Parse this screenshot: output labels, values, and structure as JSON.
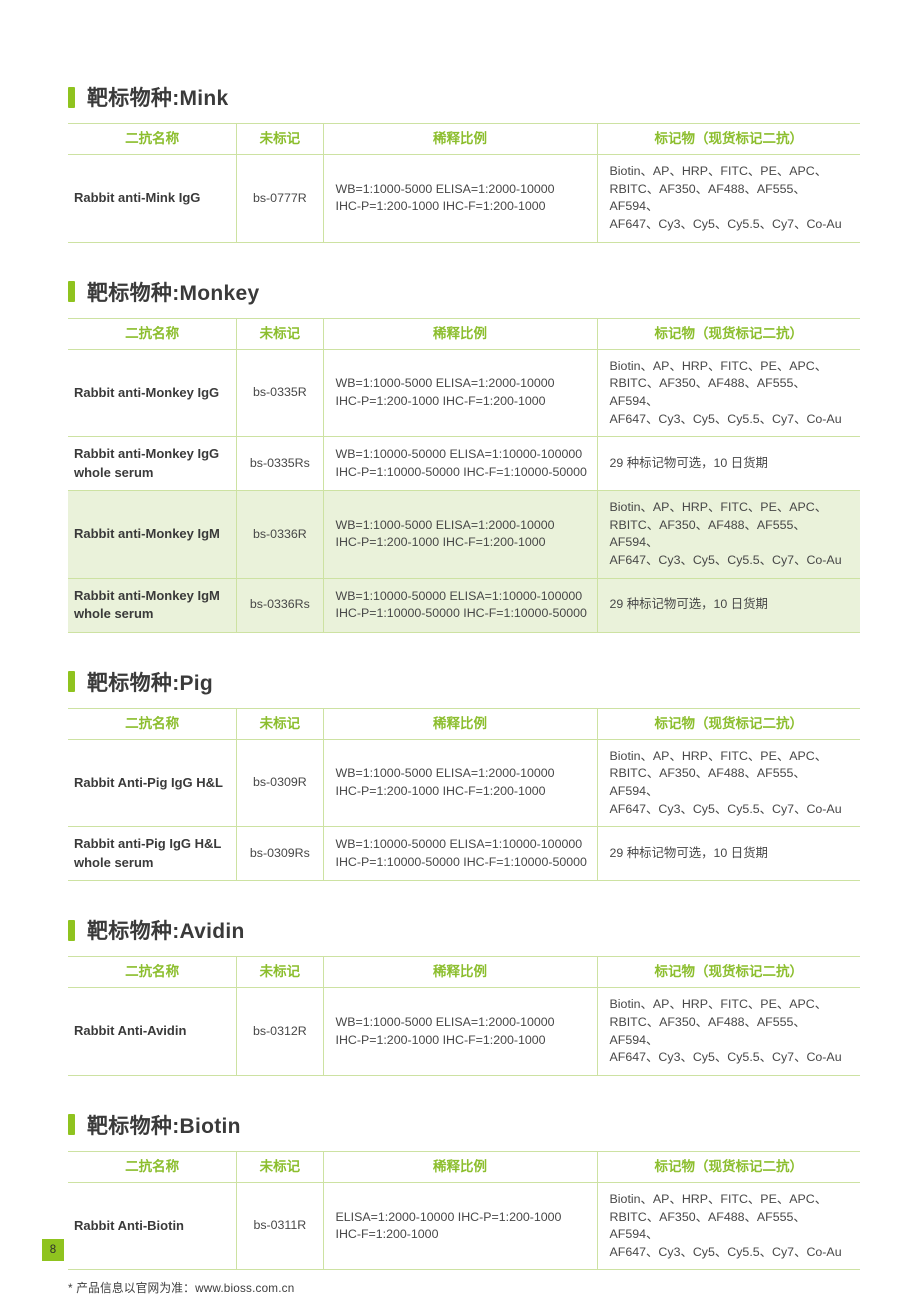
{
  "colors": {
    "accent_green": "#8fc31f",
    "header_text_green": "#8cbe2e",
    "table_border_green": "#cde2a2",
    "row_highlight_green": "#eaf2da",
    "body_text": "#3f3f3f"
  },
  "table_headers": {
    "col1": "二抗名称",
    "col2": "未标记",
    "col3": "稀释比例",
    "col4": "标记物（现货标记二抗）"
  },
  "sections": [
    {
      "title": "靶标物种:Mink",
      "rows": [
        {
          "name": "Rabbit anti-Mink IgG",
          "code": "bs-0777R",
          "dilution": "WB=1:1000-5000  ELISA=1:2000-10000\nIHC-P=1:200-1000  IHC-F=1:200-1000",
          "labels": "Biotin、AP、HRP、FITC、PE、APC、\nRBITC、AF350、AF488、AF555、AF594、\nAF647、Cy3、Cy5、Cy5.5、Cy7、Co-Au",
          "highlight": false
        }
      ]
    },
    {
      "title": "靶标物种:Monkey",
      "rows": [
        {
          "name": "Rabbit anti-Monkey IgG",
          "code": "bs-0335R",
          "dilution": "WB=1:1000-5000  ELISA=1:2000-10000\nIHC-P=1:200-1000  IHC-F=1:200-1000",
          "labels": "Biotin、AP、HRP、FITC、PE、APC、\nRBITC、AF350、AF488、AF555、AF594、\nAF647、Cy3、Cy5、Cy5.5、Cy7、Co-Au",
          "highlight": false
        },
        {
          "name": "Rabbit anti-Monkey IgG whole serum",
          "code": "bs-0335Rs",
          "dilution": "WB=1:10000-50000  ELISA=1:10000-100000\nIHC-P=1:10000-50000  IHC-F=1:10000-50000",
          "labels": "29 种标记物可选，10 日货期",
          "highlight": false
        },
        {
          "name": "Rabbit anti-Monkey IgM",
          "code": "bs-0336R",
          "dilution": "WB=1:1000-5000  ELISA=1:2000-10000\nIHC-P=1:200-1000  IHC-F=1:200-1000",
          "labels": "Biotin、AP、HRP、FITC、PE、APC、\nRBITC、AF350、AF488、AF555、AF594、\nAF647、Cy3、Cy5、Cy5.5、Cy7、Co-Au",
          "highlight": true
        },
        {
          "name": "Rabbit anti-Monkey IgM whole serum",
          "code": "bs-0336Rs",
          "dilution": "WB=1:10000-50000  ELISA=1:10000-100000\nIHC-P=1:10000-50000  IHC-F=1:10000-50000",
          "labels": "29 种标记物可选，10 日货期",
          "highlight": true
        }
      ]
    },
    {
      "title": "靶标物种:Pig",
      "rows": [
        {
          "name": "Rabbit Anti-Pig IgG H&L",
          "code": "bs-0309R",
          "dilution": "WB=1:1000-5000  ELISA=1:2000-10000\nIHC-P=1:200-1000  IHC-F=1:200-1000",
          "labels": "Biotin、AP、HRP、FITC、PE、APC、\nRBITC、AF350、AF488、AF555、AF594、\nAF647、Cy3、Cy5、Cy5.5、Cy7、Co-Au",
          "highlight": false
        },
        {
          "name": "Rabbit anti-Pig IgG H&L whole serum",
          "code": "bs-0309Rs",
          "dilution": "WB=1:10000-50000  ELISA=1:10000-100000\nIHC-P=1:10000-50000  IHC-F=1:10000-50000",
          "labels": "29 种标记物可选，10 日货期",
          "highlight": false
        }
      ]
    },
    {
      "title": "靶标物种:Avidin",
      "rows": [
        {
          "name": "Rabbit Anti-Avidin",
          "code": "bs-0312R",
          "dilution": "WB=1:1000-5000  ELISA=1:2000-10000\nIHC-P=1:200-1000  IHC-F=1:200-1000",
          "labels": "Biotin、AP、HRP、FITC、PE、APC、\nRBITC、AF350、AF488、AF555、AF594、\nAF647、Cy3、Cy5、Cy5.5、Cy7、Co-Au",
          "highlight": false
        }
      ]
    },
    {
      "title": "靶标物种:Biotin",
      "rows": [
        {
          "name": "Rabbit Anti-Biotin",
          "code": "bs-0311R",
          "dilution": "ELISA=1:2000-10000  IHC-P=1:200-1000\nIHC-F=1:200-1000",
          "labels": "Biotin、AP、HRP、FITC、PE、APC、\nRBITC、AF350、AF488、AF555、AF594、\nAF647、Cy3、Cy5、Cy5.5、Cy7、Co-Au",
          "highlight": false
        }
      ]
    }
  ],
  "page": {
    "footnote": "* 产品信息以官网为准：www.bioss.com.cn",
    "page_number": "8"
  }
}
